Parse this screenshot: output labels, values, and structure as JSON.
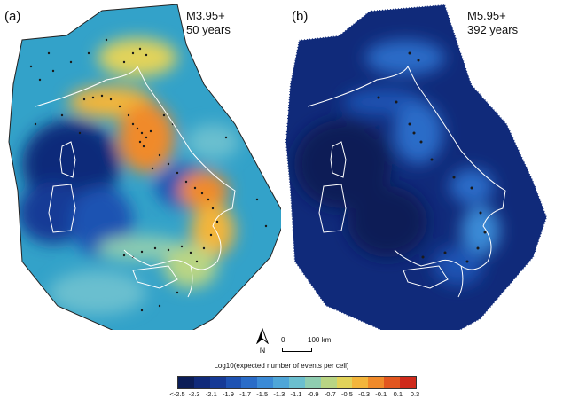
{
  "panels": [
    {
      "letter": "(a)",
      "magnitude": "M3.95+",
      "period": "50 years",
      "intensity": "high"
    },
    {
      "letter": "(b)",
      "magnitude": "M5.95+",
      "period": "392 years",
      "intensity": "low"
    }
  ],
  "north_label": "N",
  "scale": {
    "zero": "0",
    "distance": "100 km"
  },
  "colorbar": {
    "title": "Log10(expected number of events per cell)",
    "ticks": [
      "<-2.5",
      "-2.3",
      "-2.1",
      "-1.9",
      "-1.7",
      "-1.5",
      "-1.3",
      "-1.1",
      "-0.9",
      "-0.7",
      "-0.5",
      "-0.3",
      "-0.1",
      "0.1",
      "0.3"
    ],
    "colors": [
      "#0b1d57",
      "#102a7a",
      "#163a96",
      "#1e52b2",
      "#2a6cc8",
      "#3b8ad6",
      "#4fa6d8",
      "#6bbfcf",
      "#8fcdb0",
      "#b9d584",
      "#e2d35a",
      "#f3b53b",
      "#f08a2a",
      "#e2561f",
      "#cf2a1b"
    ]
  }
}
